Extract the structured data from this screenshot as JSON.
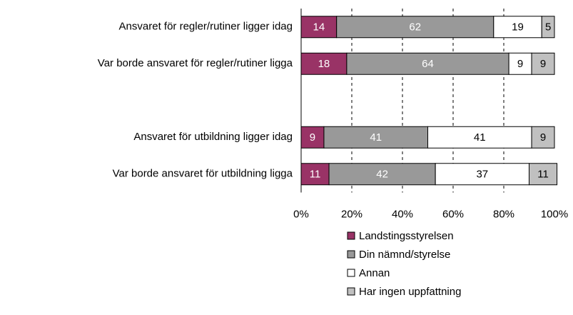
{
  "chart_data": {
    "type": "stacked_bar_horizontal",
    "categories": [
      "Ansvaret för regler/rutiner ligger idag",
      "Var borde ansvaret för regler/rutiner ligga",
      null,
      "Ansvaret för utbildning ligger idag",
      "Var borde ansvaret för utbildning ligga"
    ],
    "series": [
      {
        "name": "Landstingsstyrelsen",
        "color": "#993366",
        "label_color": "#ffffff",
        "values": [
          14,
          18,
          null,
          9,
          11
        ]
      },
      {
        "name": "Din nämnd/styrelse",
        "color": "#999999",
        "label_color": "#ffffff",
        "values": [
          62,
          64,
          null,
          41,
          42
        ]
      },
      {
        "name": "Annan",
        "color": "#ffffff",
        "label_color": "#000000",
        "values": [
          19,
          9,
          null,
          41,
          37
        ]
      },
      {
        "name": "Har ingen uppfattning",
        "color": "#c0c0c0",
        "label_color": "#000000",
        "values": [
          5,
          9,
          null,
          9,
          11
        ]
      }
    ],
    "xlim": [
      0,
      100
    ],
    "xticks": [
      {
        "value": 0,
        "label": "0%"
      },
      {
        "value": 20,
        "label": "20%"
      },
      {
        "value": 40,
        "label": "40%"
      },
      {
        "value": 60,
        "label": "60%"
      },
      {
        "value": 80,
        "label": "80%"
      },
      {
        "value": 100,
        "label": "100%"
      }
    ],
    "grid": true,
    "legend": "bottom"
  }
}
